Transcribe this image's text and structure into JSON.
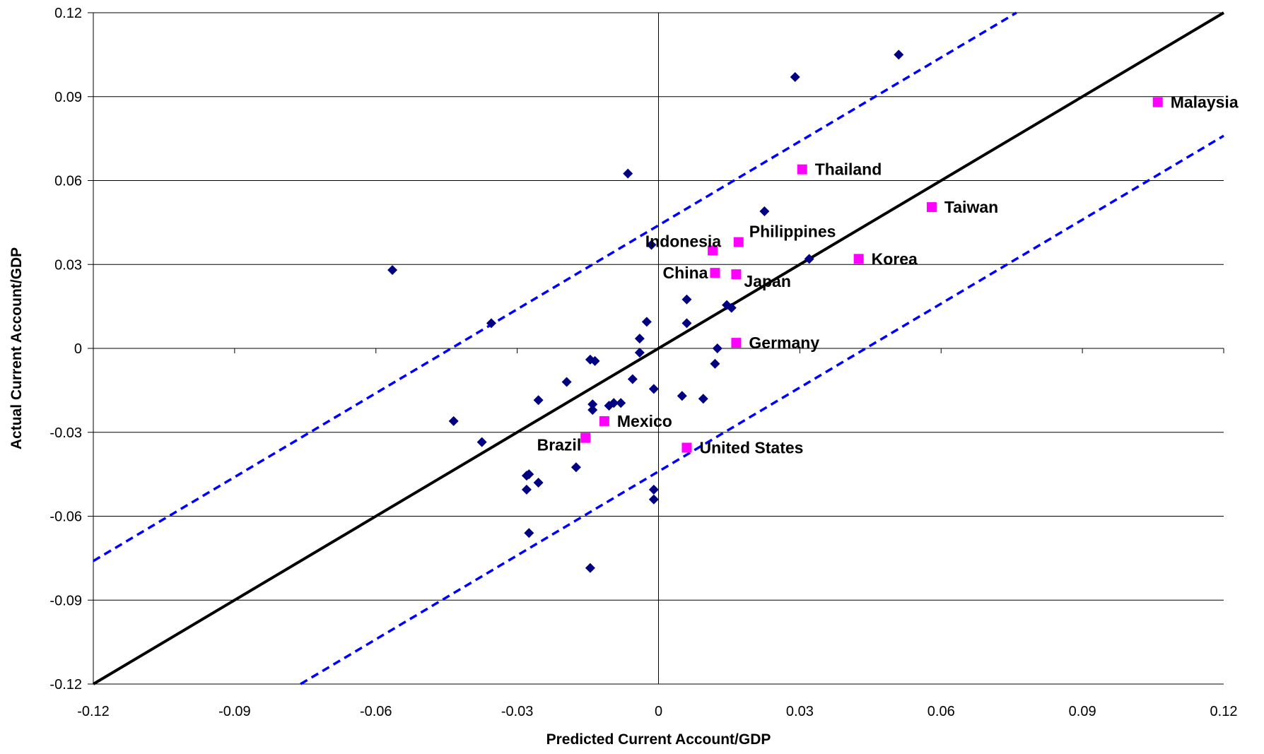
{
  "chart_data": {
    "type": "scatter",
    "xlabel": "Predicted Current Account/GDP",
    "ylabel": "Actual Current Account/GDP",
    "xlim": [
      -0.12,
      0.12
    ],
    "ylim": [
      -0.12,
      0.12
    ],
    "xticks": [
      "-0.12",
      "-0.09",
      "-0.06",
      "-0.03",
      "0",
      "0.03",
      "0.06",
      "0.09",
      "0.12"
    ],
    "yticks": [
      "-0.12",
      "-0.09",
      "-0.06",
      "-0.03",
      "0",
      "0.03",
      "0.06",
      "0.09",
      "0.12"
    ],
    "grid": "horizontal",
    "colors": {
      "other_points": "#000080",
      "highlight_points": "#ff00ff",
      "fit_line": "#000000",
      "band_lines": "#0000ff"
    },
    "lines": {
      "fit": {
        "x": [
          -0.12,
          0.12
        ],
        "y": [
          -0.12,
          0.12
        ]
      },
      "upper_band": {
        "x": [
          -0.12,
          0.076
        ],
        "y": [
          -0.076,
          0.12
        ]
      },
      "lower_band": {
        "x": [
          -0.076,
          0.12
        ],
        "y": [
          -0.12,
          0.076
        ]
      }
    },
    "highlighted": [
      {
        "label": "Malaysia",
        "x": 0.106,
        "y": 0.088,
        "label_side": "right"
      },
      {
        "label": "Thailand",
        "x": 0.0305,
        "y": 0.064,
        "label_side": "right"
      },
      {
        "label": "Taiwan",
        "x": 0.058,
        "y": 0.0505,
        "label_side": "right"
      },
      {
        "label": "Philippines",
        "x": 0.017,
        "y": 0.038,
        "label_side": "right-up"
      },
      {
        "label": "Indonesia",
        "x": 0.0115,
        "y": 0.035,
        "label_side": "left-up"
      },
      {
        "label": "Korea",
        "x": 0.0425,
        "y": 0.032,
        "label_side": "right"
      },
      {
        "label": "China",
        "x": 0.012,
        "y": 0.027,
        "label_side": "left"
      },
      {
        "label": "Japan",
        "x": 0.0165,
        "y": 0.0265,
        "label_side": "right-down"
      },
      {
        "label": "Germany",
        "x": 0.0165,
        "y": 0.002,
        "label_side": "right"
      },
      {
        "label": "Mexico",
        "x": -0.0115,
        "y": -0.026,
        "label_side": "right"
      },
      {
        "label": "Brazil",
        "x": -0.0155,
        "y": -0.032,
        "label_side": "left-down"
      },
      {
        "label": "United States",
        "x": 0.006,
        "y": -0.0355,
        "label_side": "right"
      }
    ],
    "others": [
      [
        -0.0565,
        0.028
      ],
      [
        -0.0355,
        0.009
      ],
      [
        -0.0435,
        -0.026
      ],
      [
        -0.0375,
        -0.0335
      ],
      [
        -0.0275,
        -0.045
      ],
      [
        -0.028,
        -0.0455
      ],
      [
        -0.028,
        -0.0505
      ],
      [
        -0.0255,
        -0.048
      ],
      [
        -0.0275,
        -0.066
      ],
      [
        -0.0255,
        -0.0185
      ],
      [
        -0.0195,
        -0.012
      ],
      [
        -0.0145,
        -0.004
      ],
      [
        -0.0135,
        -0.0045
      ],
      [
        -0.0175,
        -0.0425
      ],
      [
        -0.014,
        -0.02
      ],
      [
        -0.014,
        -0.022
      ],
      [
        -0.0105,
        -0.0205
      ],
      [
        -0.0095,
        -0.0195
      ],
      [
        -0.008,
        -0.0195
      ],
      [
        -0.0145,
        -0.0785
      ],
      [
        -0.0065,
        0.0625
      ],
      [
        -0.004,
        0.0035
      ],
      [
        -0.0055,
        -0.011
      ],
      [
        -0.004,
        -0.0015
      ],
      [
        -0.0025,
        0.0095
      ],
      [
        -0.0015,
        0.037
      ],
      [
        -0.001,
        -0.0145
      ],
      [
        -0.001,
        -0.0505
      ],
      [
        -0.001,
        -0.054
      ],
      [
        0.005,
        -0.017
      ],
      [
        0.006,
        0.0175
      ],
      [
        0.006,
        0.009
      ],
      [
        0.0095,
        -0.018
      ],
      [
        0.012,
        -0.0055
      ],
      [
        0.0125,
        0.0
      ],
      [
        0.0145,
        0.0155
      ],
      [
        0.0155,
        0.0145
      ],
      [
        0.0225,
        0.049
      ],
      [
        0.032,
        0.032
      ],
      [
        0.029,
        0.097
      ],
      [
        0.051,
        0.105
      ]
    ]
  }
}
